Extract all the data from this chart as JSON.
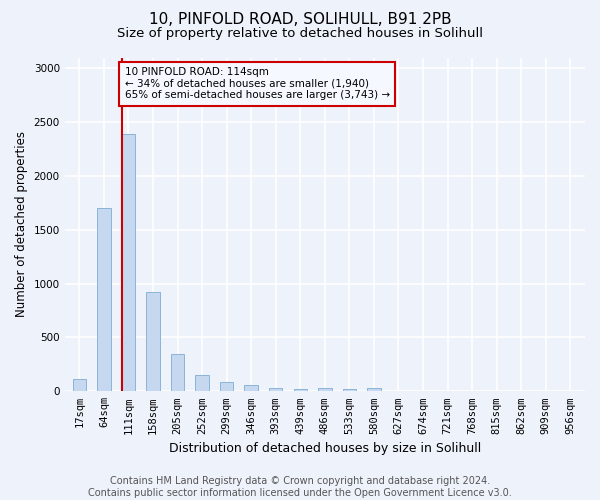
{
  "title1": "10, PINFOLD ROAD, SOLIHULL, B91 2PB",
  "title2": "Size of property relative to detached houses in Solihull",
  "xlabel": "Distribution of detached houses by size in Solihull",
  "ylabel": "Number of detached properties",
  "categories": [
    "17sqm",
    "64sqm",
    "111sqm",
    "158sqm",
    "205sqm",
    "252sqm",
    "299sqm",
    "346sqm",
    "393sqm",
    "439sqm",
    "486sqm",
    "533sqm",
    "580sqm",
    "627sqm",
    "674sqm",
    "721sqm",
    "768sqm",
    "815sqm",
    "862sqm",
    "909sqm",
    "956sqm"
  ],
  "values": [
    115,
    1700,
    2390,
    920,
    350,
    155,
    85,
    55,
    35,
    18,
    35,
    25,
    30,
    0,
    0,
    0,
    0,
    0,
    0,
    0,
    0
  ],
  "bar_color": "#c5d8f0",
  "bar_edge_color": "#8ab4d8",
  "vline_index": 2,
  "vline_color": "#cc0000",
  "annotation_text": "10 PINFOLD ROAD: 114sqm\n← 34% of detached houses are smaller (1,940)\n65% of semi-detached houses are larger (3,743) →",
  "annotation_box_facecolor": "#f5f8ff",
  "annotation_box_edgecolor": "#cc0000",
  "ylim": [
    0,
    3100
  ],
  "yticks": [
    0,
    500,
    1000,
    1500,
    2000,
    2500,
    3000
  ],
  "footer1": "Contains HM Land Registry data © Crown copyright and database right 2024.",
  "footer2": "Contains public sector information licensed under the Open Government Licence v3.0.",
  "bg_color": "#eef2fb",
  "grid_color": "#ffffff",
  "title1_fontsize": 11,
  "title2_fontsize": 9.5,
  "xlabel_fontsize": 9,
  "ylabel_fontsize": 8.5,
  "tick_fontsize": 7.5,
  "annotation_fontsize": 7.5,
  "footer_fontsize": 7,
  "bar_width": 0.55
}
